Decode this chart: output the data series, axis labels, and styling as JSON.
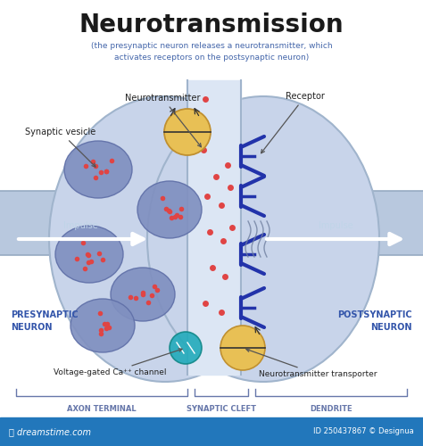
{
  "title": "Neurotransmission",
  "subtitle": "(the presynaptic neuron releases a neurotransmitter, which\nactivates receptors on the postsynaptic neuron)",
  "title_color": "#1a1a1a",
  "subtitle_color": "#4466aa",
  "bg_color": "#ffffff",
  "neuron_fill": "#c8d4ea",
  "neuron_edge": "#a0b4cc",
  "neuron_fill_dark": "#b8c8de",
  "cleft_bg": "#dce6f4",
  "cleft_border": "#a0b4cc",
  "vesicle_fill": "#8090c0",
  "vesicle_edge": "#6070a8",
  "dot_color": "#e04444",
  "impulse_color": "#ffffff",
  "impulse_text": "#b8cce0",
  "label_color": "#222222",
  "neuron_label_color": "#3355aa",
  "bottom_label_color": "#6677aa",
  "receptor_color": "#2233aa",
  "ca_channel_color": "#22aabb",
  "transporter_color": "#e8c055",
  "gold_vesicle": "#e8c055",
  "footer_bg": "#2277bb",
  "footer_text": "dreamstime.com",
  "footer_id": "ID 250437867 © Designua",
  "bottom_labels": [
    "AXON TERMINAL",
    "SYNAPTIC CLEFT",
    "DENDRITE"
  ],
  "pre_label": "PRESYNAPTIC\nNEURON",
  "post_label": "POSTSYNAPTIC\nNEURON",
  "axon_fill": "#b8c8de",
  "axon_edge": "#96aac2"
}
